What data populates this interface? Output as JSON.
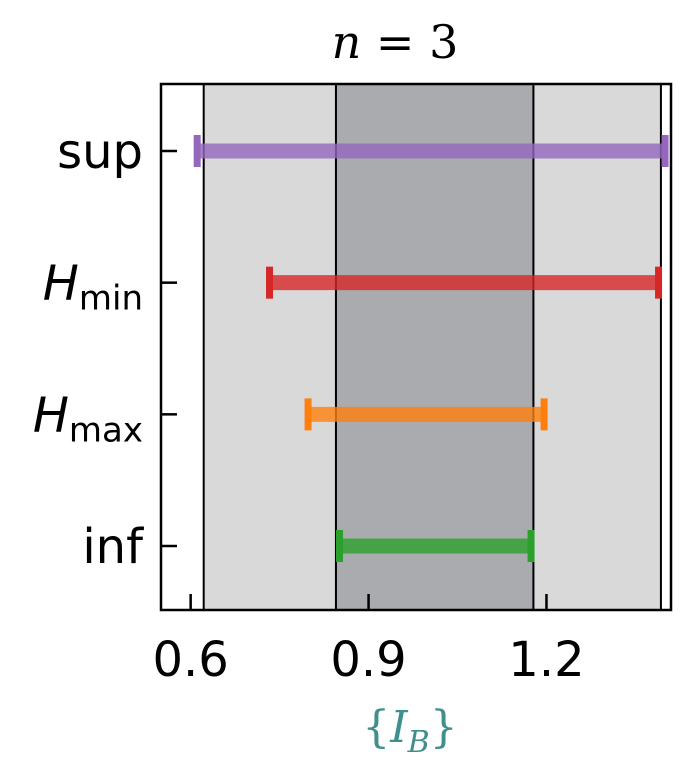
{
  "chart_data": {
    "type": "interval",
    "title": {
      "var": "n",
      "op": " = ",
      "value": "3"
    },
    "xlabel": {
      "open": "{",
      "main": "I",
      "sub": "B",
      "close": "}",
      "color": "#3f8f8c"
    },
    "xlim": [
      0.55,
      1.41
    ],
    "xticks": [
      {
        "value": 0.6,
        "label": "0.6"
      },
      {
        "value": 0.9,
        "label": "0.9"
      },
      {
        "value": 1.2,
        "label": "1.2"
      }
    ],
    "bands": [
      {
        "start": 0.622,
        "end": 1.393,
        "color": "#d9d9d9"
      },
      {
        "start": 0.845,
        "end": 1.178,
        "color": "#aaabae"
      }
    ],
    "vlines": [
      0.622,
      0.845,
      1.178,
      1.393
    ],
    "series": [
      {
        "name": "sup",
        "label_main": "sup",
        "label_sub": "",
        "min": 0.611,
        "max": 1.4,
        "color": "#9467bd"
      },
      {
        "name": "H_min",
        "label_main": "H",
        "label_sub": "min",
        "min": 0.733,
        "max": 1.389,
        "color": "#d62728"
      },
      {
        "name": "H_max",
        "label_main": "H",
        "label_sub": "max",
        "min": 0.798,
        "max": 1.196,
        "color": "#ff7f0e"
      },
      {
        "name": "inf",
        "label_main": "inf",
        "label_sub": "",
        "min": 0.851,
        "max": 1.174,
        "color": "#2ca02c"
      }
    ]
  }
}
